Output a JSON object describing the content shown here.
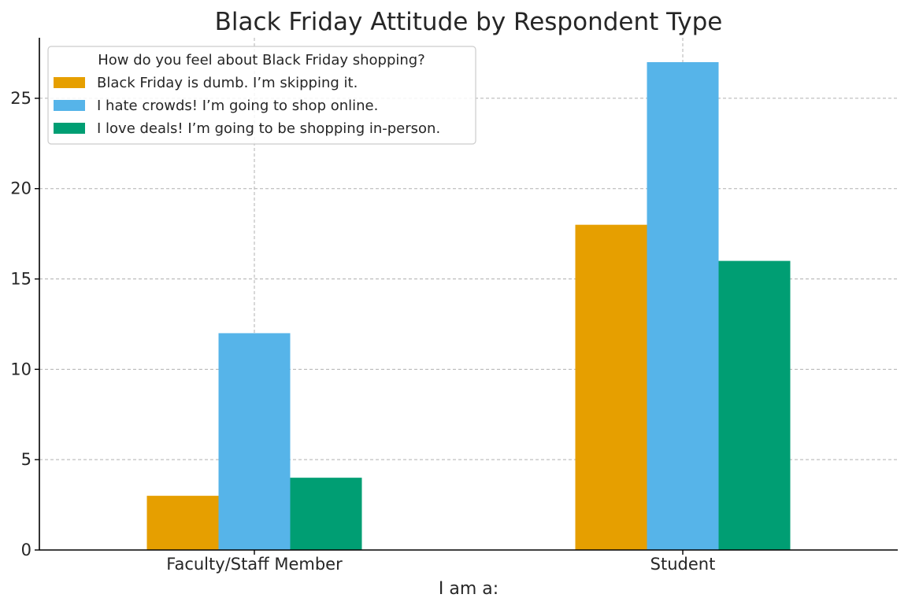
{
  "chart_data": {
    "type": "bar",
    "title": "Black Friday Attitude by Respondent Type",
    "xlabel": "I am a:",
    "ylabel": "",
    "categories": [
      "Faculty/Staff Member",
      "Student"
    ],
    "series": [
      {
        "name": "Black Friday is dumb. I’m skipping it.",
        "values": [
          3,
          18
        ],
        "color": "#E69F00"
      },
      {
        "name": "I hate crowds! I’m going to shop online.",
        "values": [
          12,
          27
        ],
        "color": "#56B4E9"
      },
      {
        "name": "I love deals! I’m going to be shopping in-person.",
        "values": [
          4,
          16
        ],
        "color": "#009E73"
      }
    ],
    "ylim": [
      0,
      28.35
    ],
    "yticks": [
      0,
      5,
      10,
      15,
      20,
      25
    ],
    "grid": true,
    "legend": {
      "title": "How do you feel about Black Friday shopping?",
      "placement": "top-left"
    }
  }
}
